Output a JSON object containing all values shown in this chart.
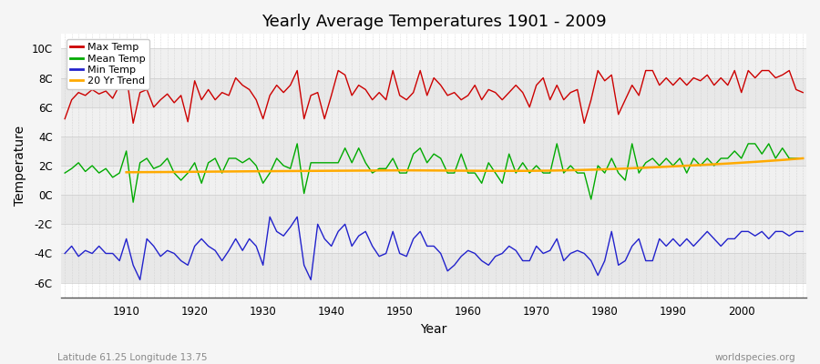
{
  "title": "Yearly Average Temperatures 1901 - 2009",
  "xlabel": "Year",
  "ylabel": "Temperature",
  "lat_lon_label": "Latitude 61.25 Longitude 13.75",
  "source_label": "worldspecies.org",
  "ylim": [
    -7,
    11
  ],
  "yticks": [
    -6,
    -4,
    -2,
    0,
    2,
    4,
    6,
    8,
    10
  ],
  "ytick_labels": [
    "-6C",
    "-4C",
    "-2C",
    "0C",
    "2C",
    "4C",
    "6C",
    "8C",
    "10C"
  ],
  "start_year": 1901,
  "end_year": 2009,
  "max_temp": [
    5.2,
    6.5,
    7.0,
    6.8,
    7.2,
    6.9,
    7.1,
    6.6,
    7.5,
    8.2,
    4.9,
    7.0,
    7.2,
    6.0,
    6.5,
    6.9,
    6.3,
    6.8,
    5.0,
    7.8,
    6.5,
    7.2,
    6.5,
    7.0,
    6.8,
    8.0,
    7.5,
    7.2,
    6.5,
    5.2,
    6.8,
    7.5,
    7.0,
    7.5,
    8.5,
    5.2,
    6.8,
    7.0,
    5.2,
    6.8,
    8.5,
    8.2,
    6.8,
    7.5,
    7.2,
    6.5,
    7.0,
    6.5,
    8.5,
    6.8,
    6.5,
    7.0,
    8.5,
    6.8,
    8.0,
    7.5,
    6.8,
    7.0,
    6.5,
    6.8,
    7.5,
    6.5,
    7.2,
    7.0,
    6.5,
    7.0,
    7.5,
    7.0,
    6.0,
    7.5,
    8.0,
    6.5,
    7.5,
    6.5,
    7.0,
    7.2,
    4.9,
    6.5,
    8.5,
    7.8,
    8.2,
    5.5,
    6.5,
    7.5,
    6.8,
    8.5,
    8.5,
    7.5,
    8.0,
    7.5,
    8.0,
    7.5,
    8.0,
    7.8,
    8.2,
    7.5,
    8.0,
    7.5,
    8.5,
    7.0,
    8.5,
    8.0,
    8.5,
    8.5,
    8.0,
    8.2,
    8.5,
    7.2,
    7.0
  ],
  "mean_temp": [
    1.5,
    1.8,
    2.2,
    1.6,
    2.0,
    1.5,
    1.8,
    1.2,
    1.5,
    3.0,
    -0.5,
    2.2,
    2.5,
    1.8,
    2.0,
    2.5,
    1.5,
    1.0,
    1.5,
    2.2,
    0.8,
    2.2,
    2.5,
    1.5,
    2.5,
    2.5,
    2.2,
    2.5,
    2.0,
    0.8,
    1.5,
    2.5,
    2.0,
    1.8,
    3.5,
    0.1,
    2.2,
    2.2,
    2.2,
    2.2,
    2.2,
    3.2,
    2.2,
    3.2,
    2.2,
    1.5,
    1.8,
    1.8,
    2.5,
    1.5,
    1.5,
    2.8,
    3.2,
    2.2,
    2.8,
    2.5,
    1.5,
    1.5,
    2.8,
    1.5,
    1.5,
    0.8,
    2.2,
    1.5,
    0.8,
    2.8,
    1.5,
    2.2,
    1.5,
    2.0,
    1.5,
    1.5,
    3.5,
    1.5,
    2.0,
    1.5,
    1.5,
    -0.3,
    2.0,
    1.5,
    2.5,
    1.5,
    1.0,
    3.5,
    1.5,
    2.2,
    2.5,
    2.0,
    2.5,
    2.0,
    2.5,
    1.5,
    2.5,
    2.0,
    2.5,
    2.0,
    2.5,
    2.5,
    3.0,
    2.5,
    3.5,
    3.5,
    2.8,
    3.5,
    2.5,
    3.2,
    2.5,
    2.5,
    2.5
  ],
  "min_temp": [
    -4.0,
    -3.5,
    -4.2,
    -3.8,
    -4.0,
    -3.5,
    -4.0,
    -4.0,
    -4.5,
    -3.0,
    -4.8,
    -5.8,
    -3.0,
    -3.5,
    -4.2,
    -3.8,
    -4.0,
    -4.5,
    -4.8,
    -3.5,
    -3.0,
    -3.5,
    -3.8,
    -4.5,
    -3.8,
    -3.0,
    -3.8,
    -3.0,
    -3.5,
    -4.8,
    -1.5,
    -2.5,
    -2.8,
    -2.2,
    -1.5,
    -4.8,
    -5.8,
    -2.0,
    -3.0,
    -3.5,
    -2.5,
    -2.0,
    -3.5,
    -2.8,
    -2.5,
    -3.5,
    -4.2,
    -4.0,
    -2.5,
    -4.0,
    -4.2,
    -3.0,
    -2.5,
    -3.5,
    -3.5,
    -4.0,
    -5.2,
    -4.8,
    -4.2,
    -3.8,
    -4.0,
    -4.5,
    -4.8,
    -4.2,
    -4.0,
    -3.5,
    -3.8,
    -4.5,
    -4.5,
    -3.5,
    -4.0,
    -3.8,
    -3.0,
    -4.5,
    -4.0,
    -3.8,
    -4.0,
    -4.5,
    -5.5,
    -4.5,
    -2.5,
    -4.8,
    -4.5,
    -3.5,
    -3.0,
    -4.5,
    -4.5,
    -3.0,
    -3.5,
    -3.0,
    -3.5,
    -3.0,
    -3.5,
    -3.0,
    -2.5,
    -3.0,
    -3.5,
    -3.0,
    -3.0,
    -2.5,
    -2.5,
    -2.8,
    -2.5,
    -3.0,
    -2.5,
    -2.5,
    -2.8,
    -2.5,
    -2.5
  ],
  "trend_20yr_x": [
    1910,
    1920,
    1930,
    1940,
    1950,
    1960,
    1970,
    1980,
    1990,
    2000,
    2009
  ],
  "trend_20yr_y": [
    1.55,
    1.58,
    1.62,
    1.65,
    1.68,
    1.65,
    1.65,
    1.75,
    1.95,
    2.2,
    2.5
  ],
  "color_max": "#cc0000",
  "color_mean": "#00aa00",
  "color_min": "#2222cc",
  "color_trend": "#ffaa00",
  "bg_color": "#f5f5f5",
  "plot_bg_color": "#ffffff",
  "band_colors": [
    "#e8e8e8",
    "#f0f0f0"
  ],
  "legend_labels": [
    "Max Temp",
    "Mean Temp",
    "Min Temp",
    "20 Yr Trend"
  ]
}
